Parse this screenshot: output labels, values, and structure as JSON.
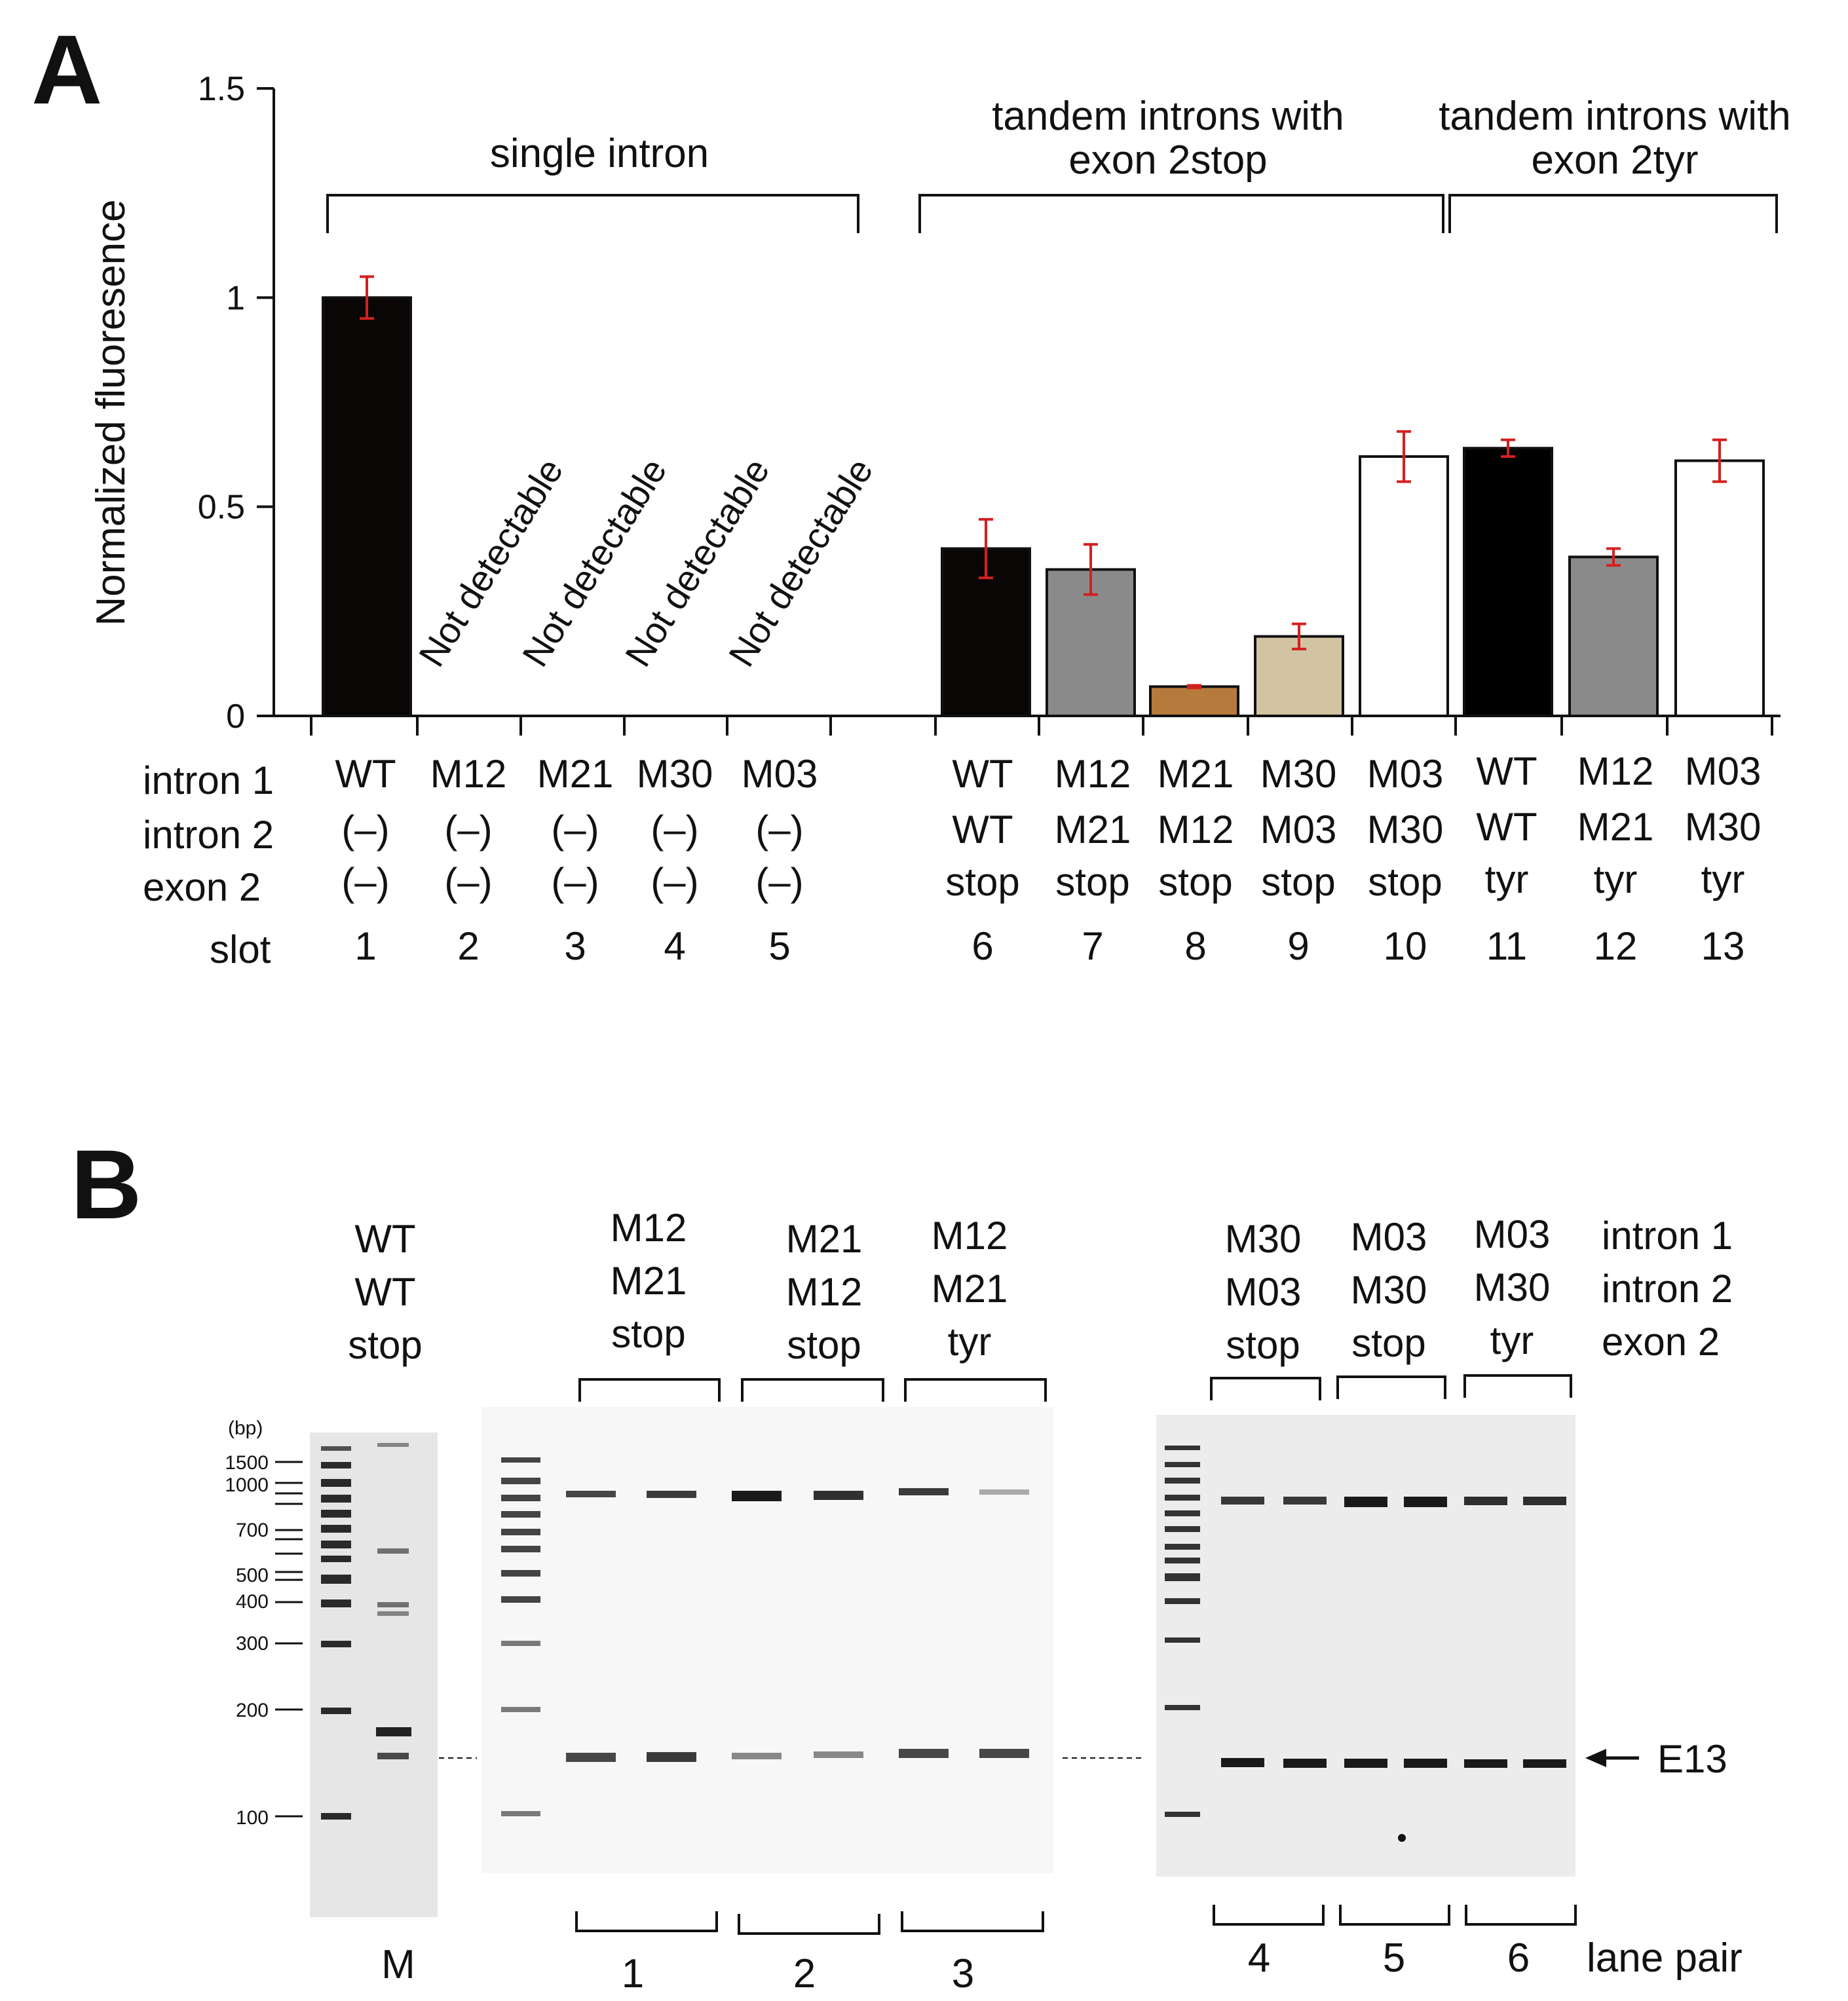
{
  "panel_a": {
    "letter": "A",
    "chart_data": {
      "type": "bar",
      "ylabel": "Normalized fluoresence",
      "ylim": [
        0,
        1.5
      ],
      "yticks": [
        {
          "value": 0,
          "label": "0"
        },
        {
          "value": 0.5,
          "label": "0.5"
        },
        {
          "value": 1,
          "label": "1"
        },
        {
          "value": 1.5,
          "label": "1.5"
        }
      ],
      "bars": [
        {
          "slot": 1,
          "value": 1.0,
          "error": 0.05,
          "color": "#0a0606",
          "detectable": true
        },
        {
          "slot": 2,
          "value": 0,
          "error": 0,
          "color": "#ffffff",
          "detectable": false
        },
        {
          "slot": 3,
          "value": 0,
          "error": 0,
          "color": "#ffffff",
          "detectable": false
        },
        {
          "slot": 4,
          "value": 0,
          "error": 0,
          "color": "#ffffff",
          "detectable": false
        },
        {
          "slot": 5,
          "value": 0,
          "error": 0,
          "color": "#ffffff",
          "detectable": false
        },
        {
          "slot": 6,
          "value": 0.4,
          "error": 0.07,
          "color": "#0a0606",
          "detectable": true
        },
        {
          "slot": 7,
          "value": 0.35,
          "error": 0.06,
          "color": "#8a8a8a",
          "detectable": true
        },
        {
          "slot": 8,
          "value": 0.07,
          "error": 0.003,
          "color": "#b57a3c",
          "detectable": true
        },
        {
          "slot": 9,
          "value": 0.19,
          "error": 0.03,
          "color": "#d2c4a2",
          "detectable": true
        },
        {
          "slot": 10,
          "value": 0.62,
          "error": 0.06,
          "color": "#ffffff",
          "detectable": true
        },
        {
          "slot": 11,
          "value": 0.64,
          "error": 0.02,
          "color": "#000000",
          "detectable": true
        },
        {
          "slot": 12,
          "value": 0.38,
          "error": 0.02,
          "color": "#8a8a8a",
          "detectable": true
        },
        {
          "slot": 13,
          "value": 0.61,
          "error": 0.05,
          "color": "#ffffff",
          "detectable": true
        }
      ],
      "error_color": "#d42020",
      "not_detectable_label": "Not detectable",
      "groups": [
        {
          "lines": [
            "single intron"
          ],
          "slots": [
            1,
            5
          ]
        },
        {
          "lines": [
            "tandem introns with",
            "exon 2stop"
          ],
          "slots": [
            6,
            10
          ]
        },
        {
          "lines": [
            "tandem introns with",
            "exon 2tyr"
          ],
          "slots": [
            11,
            13
          ]
        }
      ],
      "table": {
        "row_labels": [
          "intron 1",
          "intron 2",
          "exon 2",
          "slot"
        ],
        "columns": [
          [
            "WT",
            "(–)",
            "(–)",
            "1"
          ],
          [
            "M12",
            "(–)",
            "(–)",
            "2"
          ],
          [
            "M21",
            "(–)",
            "(–)",
            "3"
          ],
          [
            "M30",
            "(–)",
            "(–)",
            "4"
          ],
          [
            "M03",
            "(–)",
            "(–)",
            "5"
          ],
          [
            "WT",
            "WT",
            "stop",
            "6"
          ],
          [
            "M12",
            "M21",
            "stop",
            "7"
          ],
          [
            "M21",
            "M12",
            "stop",
            "8"
          ],
          [
            "M30",
            "M03",
            "stop",
            "9"
          ],
          [
            "M03",
            "M30",
            "stop",
            "10"
          ],
          [
            "WT",
            "WT",
            "tyr",
            "11"
          ],
          [
            "M12",
            "M21",
            "tyr",
            "12"
          ],
          [
            "M03",
            "M30",
            "tyr",
            "13"
          ]
        ]
      }
    }
  },
  "panel_b": {
    "letter": "B",
    "ladder_unit": "(bp)",
    "ladder_marks": [
      "1500",
      "1000",
      "700",
      "500",
      "400",
      "300",
      "200",
      "100"
    ],
    "header_groups": [
      {
        "lines": [
          "WT",
          "WT",
          "stop"
        ]
      },
      {
        "lines": [
          "M12",
          "M21",
          "stop"
        ]
      },
      {
        "lines": [
          "M21",
          "M12",
          "stop"
        ]
      },
      {
        "lines": [
          "M12",
          "M21",
          "tyr"
        ]
      },
      {
        "lines": [
          "M30",
          "M03",
          "stop"
        ]
      },
      {
        "lines": [
          "M03",
          "M30",
          "stop"
        ]
      },
      {
        "lines": [
          "M03",
          "M30",
          "tyr"
        ]
      }
    ],
    "row_legend": [
      "intron 1",
      "intron 2",
      "exon 2"
    ],
    "marker_lane_label": "M",
    "lane_pairs": [
      "1",
      "2",
      "3",
      "4",
      "5",
      "6"
    ],
    "lane_pair_label": "lane pair",
    "band_label": "E13"
  }
}
